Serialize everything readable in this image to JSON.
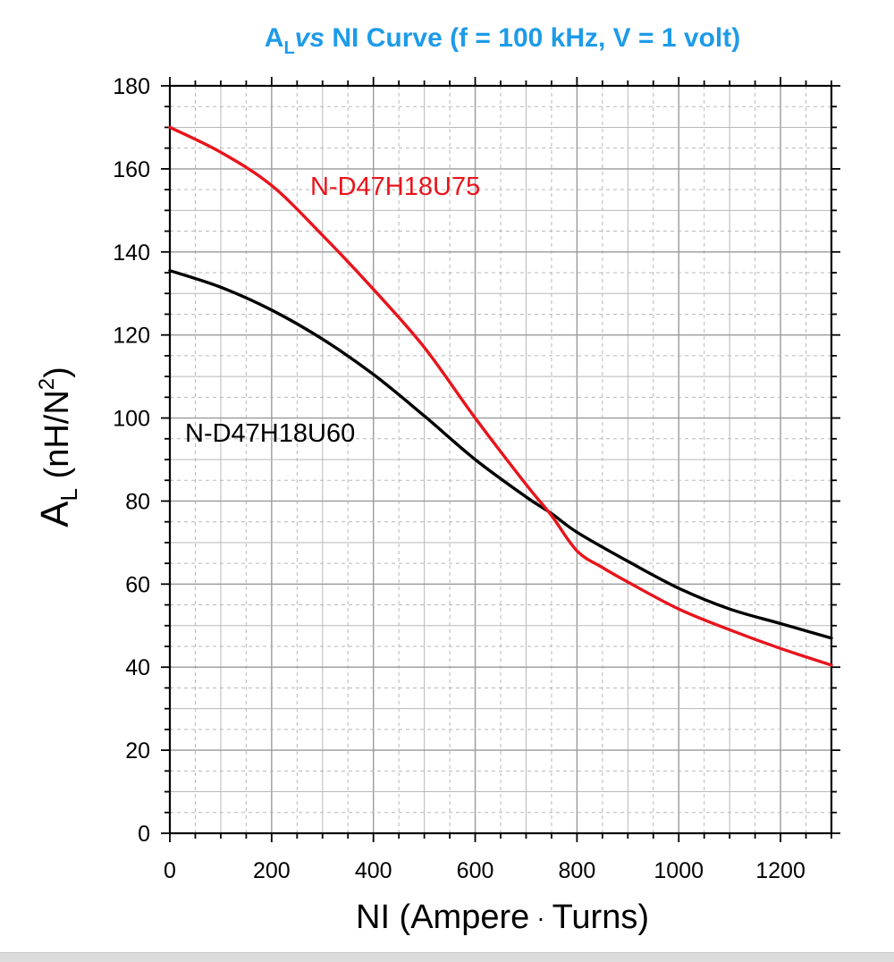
{
  "chart_data": {
    "type": "line",
    "title_parts": {
      "a": "A",
      "sub": "L",
      "vs": "vs",
      "rest": " NI Curve (f = 100 kHz, V = 1 volt)"
    },
    "title_color": "#1e9be8",
    "xlabel_parts": {
      "left": "NI (Ampere",
      "dot": "·",
      "right": "Turns)"
    },
    "ylabel_parts": {
      "a": "A",
      "sub": "L",
      "mid": " (nH/N",
      "sup": "2",
      "end": ")"
    },
    "xlim": [
      0,
      1300
    ],
    "ylim": [
      0,
      180
    ],
    "x_ticks": [
      "0",
      "200",
      "400",
      "600",
      "800",
      "1000",
      "1200"
    ],
    "y_ticks": [
      "0",
      "20",
      "40",
      "60",
      "80",
      "100",
      "120",
      "140",
      "160",
      "180"
    ],
    "grid": true,
    "series": [
      {
        "name": "N-D47H18U75",
        "color": "#e8141c",
        "x": [
          0,
          100,
          200,
          300,
          400,
          500,
          600,
          700,
          750,
          800,
          850,
          900,
          1000,
          1100,
          1200,
          1300
        ],
        "y": [
          170,
          164,
          156,
          144,
          131,
          117,
          100,
          84,
          76.5,
          68,
          64,
          60.5,
          54,
          49,
          44.5,
          40.5
        ]
      },
      {
        "name": "N-D47H18U60",
        "color": "#000000",
        "x": [
          0,
          100,
          200,
          300,
          400,
          500,
          600,
          700,
          750,
          800,
          900,
          1000,
          1100,
          1200,
          1300
        ],
        "y": [
          135.5,
          131.5,
          126,
          119,
          110.5,
          100.5,
          90,
          81,
          77,
          72.5,
          65.5,
          59,
          54,
          50.5,
          47
        ]
      }
    ]
  }
}
